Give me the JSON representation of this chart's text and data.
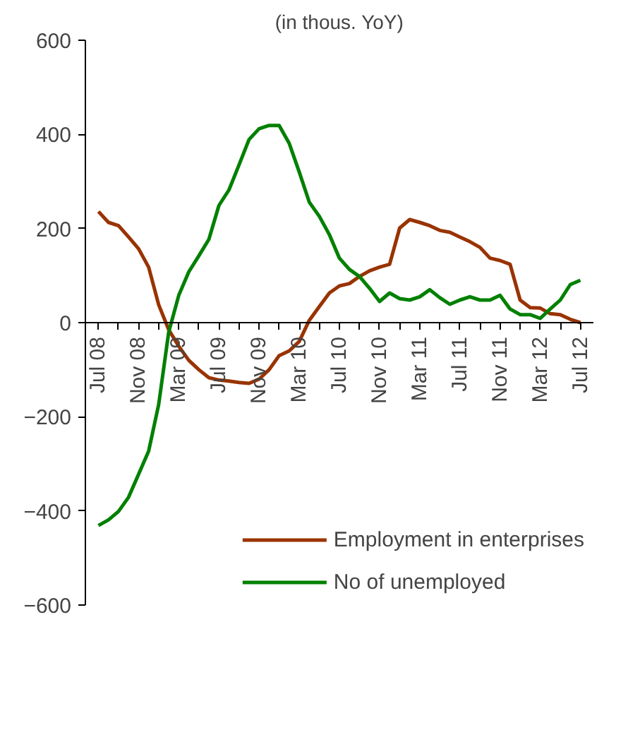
{
  "chart_data": {
    "type": "line",
    "title": "(in thous. YoY)",
    "categories": [
      "Jul 08",
      null,
      null,
      null,
      "Nov 08",
      null,
      null,
      null,
      "Mar 09",
      null,
      null,
      null,
      "Jul 09",
      null,
      null,
      null,
      "Nov 09",
      null,
      null,
      null,
      "Mar 10",
      null,
      null,
      null,
      "Jul 10",
      null,
      null,
      null,
      "Nov 10",
      null,
      null,
      null,
      "Mar 11",
      null,
      null,
      null,
      "Jul 11",
      null,
      null,
      null,
      "Nov 11",
      null,
      null,
      null,
      "Mar 12",
      null,
      null,
      null,
      "Jul 12"
    ],
    "series": [
      {
        "name": "Employment in enterprises",
        "color": "#993300",
        "values": [
          236,
          213,
          206,
          182,
          157,
          118,
          38,
          -15,
          -50,
          -80,
          -100,
          -117,
          -122,
          -124,
          -127,
          -129,
          -120,
          -100,
          -70,
          -60,
          -40,
          5,
          34,
          63,
          78,
          83,
          98,
          110,
          118,
          124,
          201,
          219,
          213,
          206,
          196,
          192,
          182,
          172,
          160,
          137,
          132,
          124,
          48,
          32,
          31,
          19,
          17,
          7,
          0
        ]
      },
      {
        "name": "No of unemployed",
        "color": "#008000",
        "values": [
          -431,
          -419,
          -401,
          -371,
          -322,
          -273,
          -174,
          -20,
          58,
          108,
          142,
          177,
          249,
          282,
          335,
          389,
          412,
          419,
          419,
          381,
          320,
          256,
          226,
          187,
          137,
          113,
          98,
          73,
          45,
          63,
          51,
          48,
          55,
          70,
          53,
          39,
          48,
          55,
          48,
          48,
          58,
          29,
          17,
          17,
          9,
          29,
          48,
          81,
          90
        ]
      }
    ],
    "ylim": [
      -600,
      600
    ],
    "yticks": [
      -600,
      -400,
      -200,
      0,
      200,
      400,
      600
    ],
    "legend": "bottom right",
    "grid": false
  }
}
